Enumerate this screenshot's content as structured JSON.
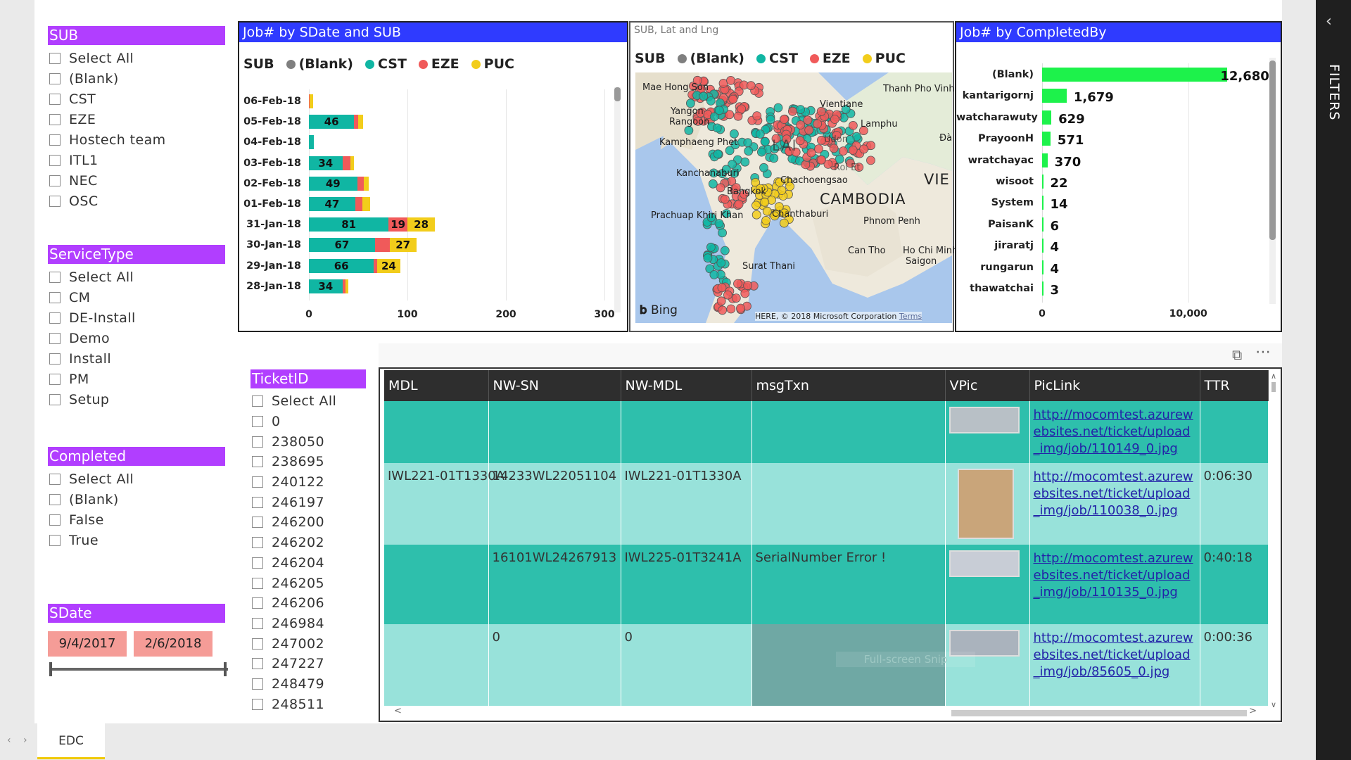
{
  "sub_slicer": {
    "title": "SUB",
    "items": [
      "Select All",
      "(Blank)",
      "CST",
      "EZE",
      "Hostech team",
      "ITL1",
      "NEC",
      "OSC"
    ]
  },
  "service_slicer": {
    "title": "ServiceType",
    "items": [
      "Select All",
      "CM",
      "DE-Install",
      "Demo",
      "Install",
      "PM",
      "Setup"
    ]
  },
  "completed_slicer": {
    "title": "Completed",
    "items": [
      "Select All",
      "(Blank)",
      "False",
      "True"
    ]
  },
  "sdate_slicer": {
    "title": "SDate",
    "start": "9/4/2017",
    "end": "2/6/2018"
  },
  "ticket_slicer": {
    "title": "TicketID",
    "items": [
      "Select All",
      "0",
      "238050",
      "238695",
      "240122",
      "246197",
      "246200",
      "246202",
      "246204",
      "246205",
      "246206",
      "246984",
      "247002",
      "247227",
      "248479",
      "248511"
    ]
  },
  "legend": {
    "title": "SUB",
    "items": [
      {
        "name": "(Blank)",
        "color": "#7f7f7f"
      },
      {
        "name": "CST",
        "color": "#10b6a3"
      },
      {
        "name": "EZE",
        "color": "#f05a5a"
      },
      {
        "name": "PUC",
        "color": "#f2cd1b"
      }
    ]
  },
  "chart_data": [
    {
      "type": "bar",
      "title": "Job# by SDate and SUB",
      "orientation": "horizontal",
      "stacked": true,
      "legend_title": "SUB",
      "categories": [
        "06-Feb-18",
        "05-Feb-18",
        "04-Feb-18",
        "03-Feb-18",
        "02-Feb-18",
        "01-Feb-18",
        "31-Jan-18",
        "30-Jan-18",
        "29-Jan-18",
        "28-Jan-18"
      ],
      "series": [
        {
          "name": "(Blank)",
          "values": [
            0,
            0,
            0,
            0,
            0,
            0,
            0,
            0,
            0,
            0
          ]
        },
        {
          "name": "CST",
          "values": [
            0,
            46,
            5,
            34,
            49,
            47,
            81,
            67,
            66,
            34
          ]
        },
        {
          "name": "EZE",
          "values": [
            1,
            4,
            0,
            8,
            7,
            7,
            19,
            15,
            3,
            3
          ]
        },
        {
          "name": "PUC",
          "values": [
            3,
            5,
            0,
            4,
            5,
            8,
            28,
            27,
            24,
            3
          ]
        }
      ],
      "bar_labels": {
        "CST": [
          "",
          "46",
          "",
          "34",
          "49",
          "47",
          "81",
          "67",
          "66",
          "34"
        ],
        "EZE": [
          "",
          "",
          "",
          "",
          "",
          "",
          "19",
          "",
          "",
          ""
        ],
        "PUC": [
          "",
          "",
          "",
          "",
          "",
          "",
          "28",
          "27",
          "24",
          ""
        ]
      },
      "xticks": [
        "0",
        "100",
        "200",
        "300"
      ],
      "xlim": [
        0,
        310
      ]
    },
    {
      "type": "bar",
      "title": "Job# by CompletedBy",
      "orientation": "horizontal",
      "categories": [
        "(Blank)",
        "kantarigornj",
        "watcharawuty",
        "PrayoonH",
        "wratchayac",
        "wisoot",
        "System",
        "PaisanK",
        "jiraratj",
        "rungarun",
        "thawatchai"
      ],
      "values": [
        12680,
        1679,
        629,
        571,
        370,
        22,
        14,
        6,
        4,
        4,
        3
      ],
      "labels": [
        "12,680",
        "1,679",
        "629",
        "571",
        "370",
        "22",
        "14",
        "6",
        "4",
        "4",
        "3"
      ],
      "xticks": [
        "0",
        "10,000"
      ],
      "xlim": [
        0,
        14500
      ],
      "color": "#1df24b"
    },
    {
      "type": "scatter",
      "title": "SUB, Lat and Lng",
      "legend_title": "SUB",
      "series": [
        "(Blank)",
        "CST",
        "EZE",
        "PUC"
      ]
    }
  ],
  "map": {
    "places": [
      "Mae Hong Son",
      "Yangon",
      "Rangoon",
      "Kamphaeng Phet",
      "Kanchanaburi",
      "Bangkok",
      "Chachoengsao",
      "Chanthaburi",
      "Prachuap Khiri Khan",
      "Vientiane",
      "Thanh Pho Vinh",
      "Lamphu",
      "CAMBODIA",
      "Phnom Penh",
      "Can Tho",
      "Ho Chi Minh",
      "Saigon",
      "Surat Thani",
      "Đà",
      "VIE",
      "LAI",
      "Udon",
      "Roi Et"
    ],
    "brand": "Bing",
    "copyright": "HERE, © 2018 Microsoft Corporation",
    "terms": "Terms"
  },
  "table": {
    "columns": [
      "MDL",
      "NW-SN",
      "NW-MDL",
      "msgTxn",
      "VPic",
      "PicLink",
      "TTR"
    ],
    "rows": [
      {
        "mdl": "",
        "nwsn": "",
        "nwmdl": "",
        "msg": "",
        "link": "http://mocomtest.azurewebsites.net/ticket/upload_img/job/110149_0.jpg",
        "ttr": ""
      },
      {
        "mdl": "IWL221-01T1330A",
        "nwsn": "14233WL22051104",
        "nwmdl": "IWL221-01T1330A",
        "msg": "",
        "link": "http://mocomtest.azurewebsites.net/ticket/upload_img/job/110038_0.jpg",
        "ttr": "0:06:30"
      },
      {
        "mdl": "",
        "nwsn": "16101WL24267913",
        "nwmdl": "IWL225-01T3241A",
        "msg": "SerialNumber Error !",
        "link": "http://mocomtest.azurewebsites.net/ticket/upload_img/job/110135_0.jpg",
        "ttr": "0:40:18"
      },
      {
        "mdl": "",
        "nwsn": "0",
        "nwmdl": "0",
        "msg": "",
        "link": "http://mocomtest.azurewebsites.net/ticket/upload_img/job/85605_0.jpg",
        "ttr": "0:00:36"
      }
    ]
  },
  "overlay_text": "Full-screen Snip",
  "page_tab": "EDC",
  "filters_label": "FILTERS"
}
